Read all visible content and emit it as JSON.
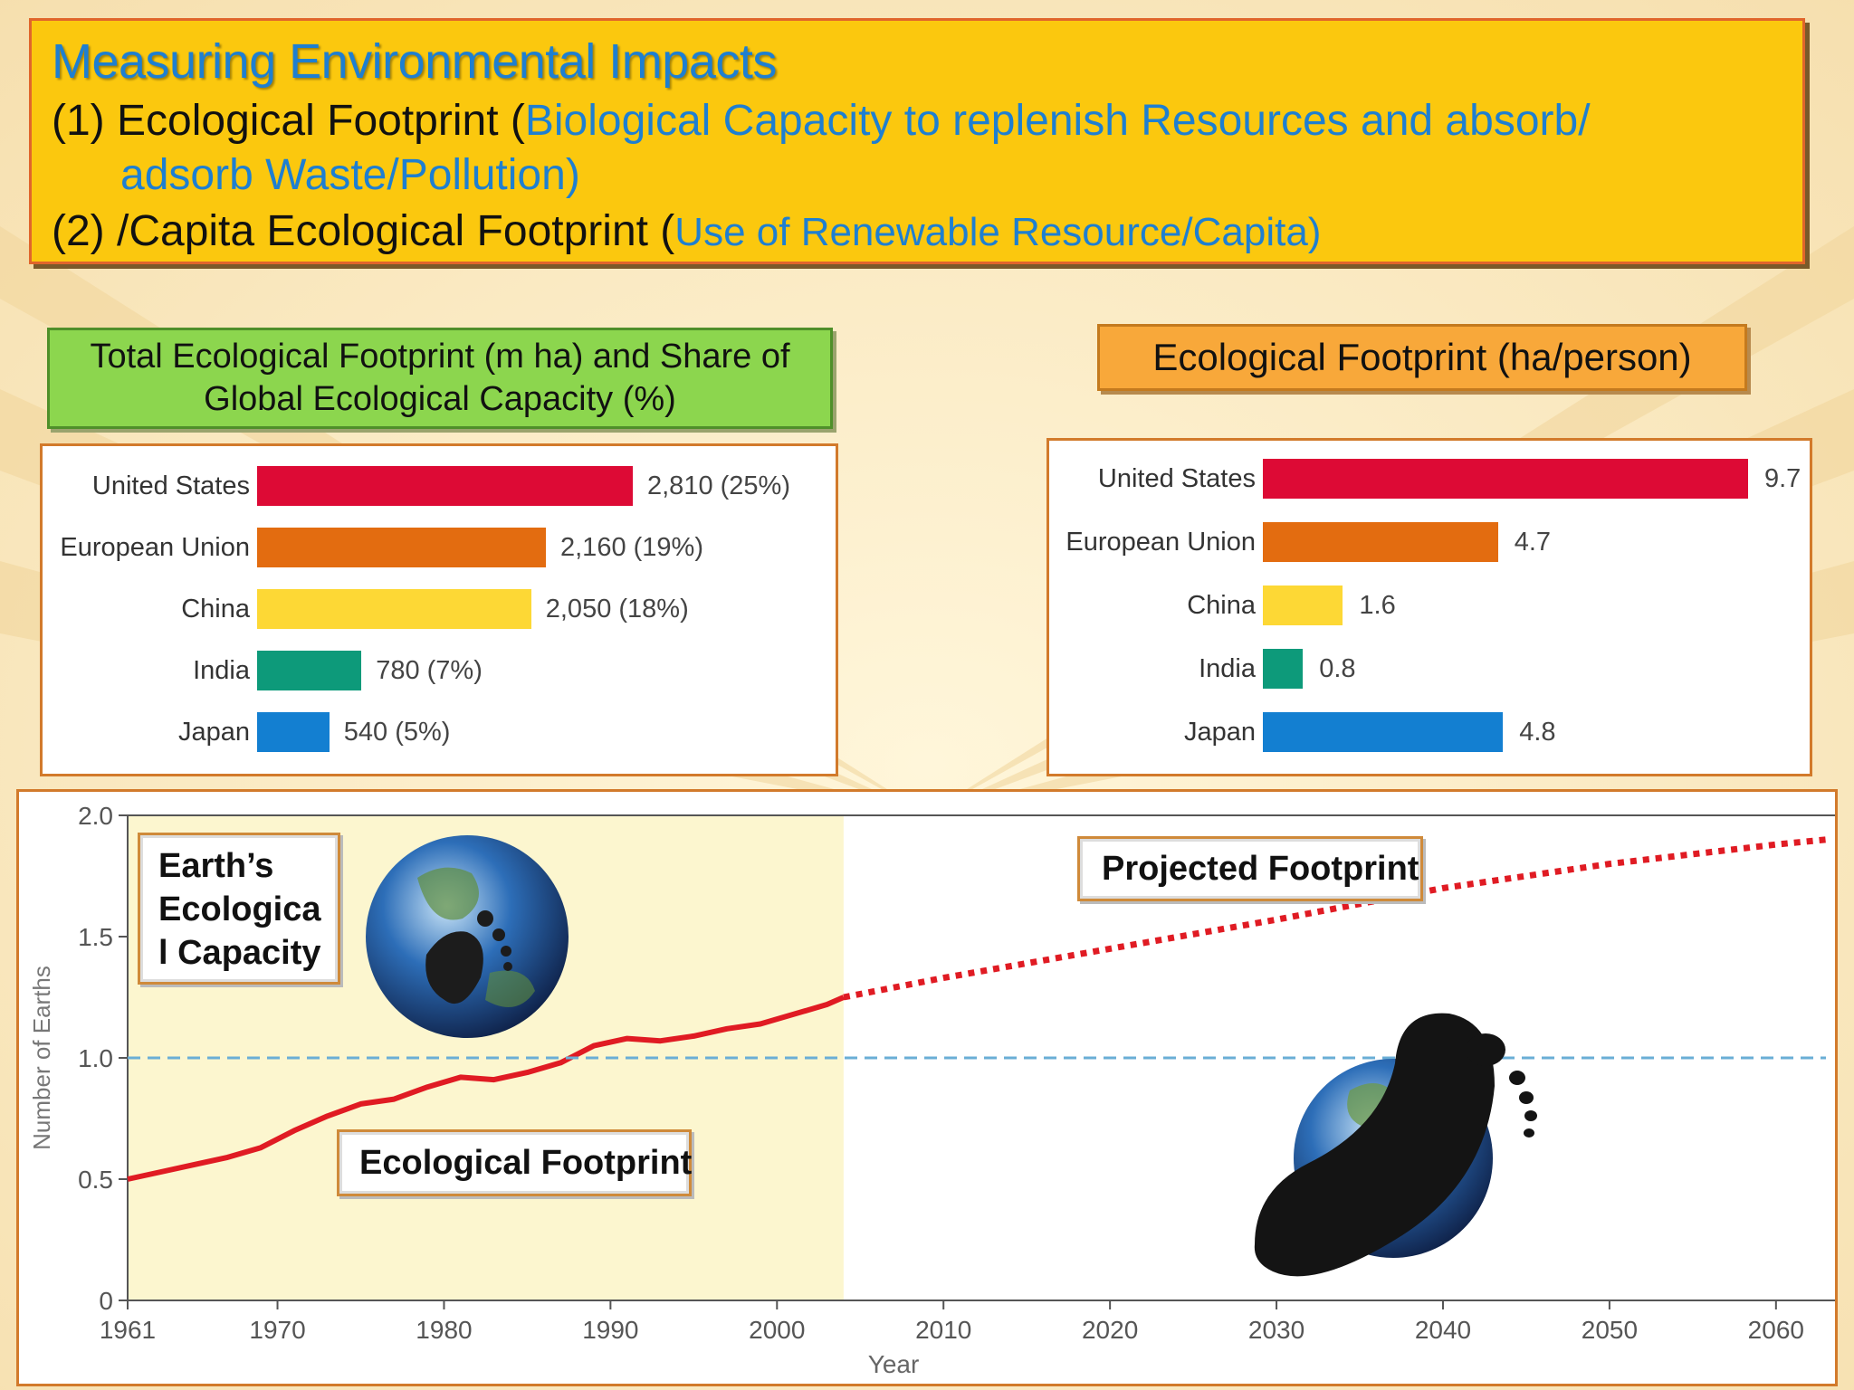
{
  "header": {
    "title": "Measuring Environmental Impacts",
    "line1_prefix": "(1) Ecological Footprint (",
    "line1_blue": "Biological Capacity to replenish Resources and absorb/",
    "line2_blue": "adsorb Waste/Pollution)",
    "line3_prefix": "(2) /Capita Ecological Footprint (",
    "line3_blue": "Use of Renewable Resource/Capita)"
  },
  "left_label": {
    "line1": "Total Ecological Footprint (m ha) and Share of",
    "line2": "Global Ecological Capacity (%)"
  },
  "right_label": {
    "text": "Ecological Footprint (ha/person)"
  },
  "chart_data": [
    {
      "type": "bar",
      "orientation": "horizontal",
      "categories": [
        "United States",
        "European Union",
        "China",
        "India",
        "Japan"
      ],
      "values": [
        2810,
        2160,
        2050,
        780,
        540
      ],
      "value_labels": [
        "2,810 (25%)",
        "2,160 (19%)",
        "2,050 (18%)",
        "780 (7%)",
        "540 (5%)"
      ],
      "colors": [
        "#dd0a35",
        "#e36c10",
        "#fdd835",
        "#0d9a7a",
        "#137fd1"
      ],
      "xlim": [
        0,
        2810
      ]
    },
    {
      "type": "bar",
      "orientation": "horizontal",
      "categories": [
        "United States",
        "European Union",
        "China",
        "India",
        "Japan"
      ],
      "values": [
        9.7,
        4.7,
        1.6,
        0.8,
        4.8
      ],
      "value_labels": [
        "9.7",
        "4.7",
        "1.6",
        "0.8",
        "4.8"
      ],
      "colors": [
        "#dd0a35",
        "#e36c10",
        "#fdd835",
        "#0d9a7a",
        "#137fd1"
      ],
      "xlim": [
        0,
        9.7
      ]
    },
    {
      "type": "line",
      "xlabel": "Year",
      "ylabel": "Number of Earths",
      "xlim": [
        1961,
        2063
      ],
      "ylim": [
        0,
        2.0
      ],
      "x_ticks": [
        "1961",
        "1970",
        "1980",
        "1990",
        "2000",
        "2010",
        "2020",
        "2030",
        "2040",
        "2050",
        "2060"
      ],
      "x_tick_values": [
        1961,
        1970,
        1980,
        1990,
        2000,
        2010,
        2020,
        2030,
        2040,
        2050,
        2060
      ],
      "y_ticks": [
        "0",
        "0.5",
        "1.0",
        "1.5",
        "2.0"
      ],
      "y_tick_values": [
        0,
        0.5,
        1.0,
        1.5,
        2.0
      ],
      "shaded_region": [
        1961,
        2004
      ],
      "series": [
        {
          "name": "Ecological Footprint",
          "style": "solid",
          "color": "#e01b23",
          "x": [
            1961,
            1963,
            1965,
            1967,
            1969,
            1971,
            1973,
            1975,
            1977,
            1979,
            1981,
            1983,
            1985,
            1987,
            1989,
            1991,
            1993,
            1995,
            1997,
            1999,
            2001,
            2003,
            2004
          ],
          "y": [
            0.5,
            0.53,
            0.56,
            0.59,
            0.63,
            0.7,
            0.76,
            0.81,
            0.83,
            0.88,
            0.92,
            0.91,
            0.94,
            0.98,
            1.05,
            1.08,
            1.07,
            1.09,
            1.12,
            1.14,
            1.18,
            1.22,
            1.25
          ]
        },
        {
          "name": "Projected Footprint",
          "style": "dotted",
          "color": "#e01b23",
          "x": [
            2004,
            2010,
            2020,
            2030,
            2040,
            2050,
            2060,
            2063
          ],
          "y": [
            1.25,
            1.33,
            1.45,
            1.57,
            1.7,
            1.8,
            1.88,
            1.9
          ]
        },
        {
          "name": "Earth's Ecological Capacity",
          "style": "dashed",
          "color": "#6aaed6",
          "x": [
            1961,
            2063
          ],
          "y": [
            1.0,
            1.0
          ]
        }
      ]
    }
  ],
  "callouts": {
    "capacity": "Earth’s Ecological Capacity",
    "projected": "Projected Footprint",
    "eco": "Ecological Footprint"
  },
  "icons": [
    "globe-icon",
    "footprint-icon"
  ]
}
